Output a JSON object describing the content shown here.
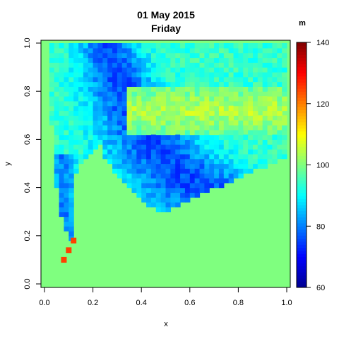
{
  "chart_data": {
    "type": "heatmap",
    "title": [
      "01 May 2015",
      "Friday"
    ],
    "xlabel": "x",
    "ylabel": "y",
    "xlim": [
      0,
      1
    ],
    "ylim": [
      0,
      1
    ],
    "x_ticks": [
      "0.0",
      "0.2",
      "0.4",
      "0.6",
      "0.8",
      "1.0"
    ],
    "y_ticks": [
      "0.0",
      "0.2",
      "0.4",
      "0.6",
      "0.8",
      "1.0"
    ],
    "grid": false,
    "colorbar": {
      "title": "m",
      "min": 60,
      "max": 140,
      "ticks": [
        "60",
        "80",
        "100",
        "120",
        "140"
      ],
      "colors": [
        "#00008f",
        "#0000ff",
        "#007fff",
        "#00ffff",
        "#7fff7f",
        "#ffff00",
        "#ff7f00",
        "#ff0000",
        "#7f0000"
      ]
    },
    "background_value": 100,
    "highlight_cells": [
      {
        "x": 0.12,
        "y": 0.18,
        "value": 125
      },
      {
        "x": 0.1,
        "y": 0.14,
        "value": 125
      },
      {
        "x": 0.08,
        "y": 0.1,
        "value": 125
      }
    ]
  }
}
